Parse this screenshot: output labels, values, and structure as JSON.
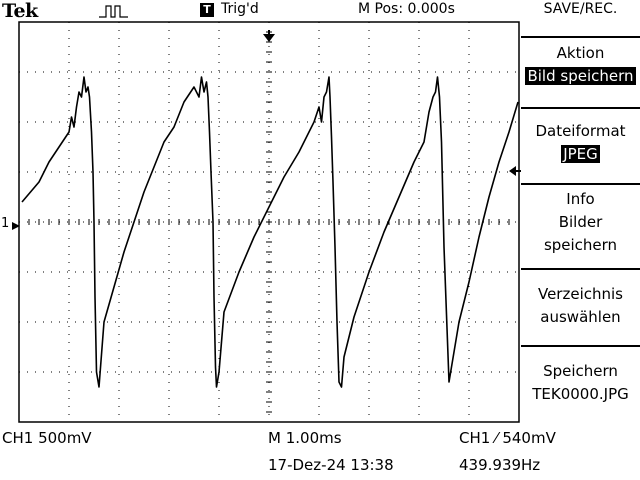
{
  "header": {
    "brand": "Tek",
    "trigger_badge": "T",
    "trigger_status": "Trig'd",
    "m_pos": "M Pos: 0.000s",
    "menu_title": "SAVE/REC."
  },
  "side_menu": {
    "aktion_label": "Aktion",
    "aktion_value": "Bild speichern",
    "format_label": "Dateiformat",
    "format_value": "JPEG",
    "info_line1": "Info",
    "info_line2": "Bilder",
    "info_line3": "speichern",
    "dir_line1": "Verzeichnis",
    "dir_line2": "auswählen",
    "save_line1": "Speichern",
    "save_line2": "TEK0000.JPG"
  },
  "channel_marker": "1",
  "footer": {
    "ch1_scale": "CH1  500mV",
    "timebase": "M 1.00ms",
    "trigger": "CH1 ⁄ 540mV",
    "datetime": "17-Dez-24 13:38",
    "frequency": "439.939Hz"
  },
  "chart_data": {
    "type": "line",
    "title": "",
    "xlabel": "",
    "ylabel": "",
    "x_divisions": 10,
    "y_divisions": 8,
    "xlim": [
      -5,
      5
    ],
    "ylim": [
      -4,
      4
    ],
    "grid": true,
    "series": [
      {
        "x": [
          -4.94,
          -4.6,
          -4.4,
          -4.2,
          -4.0,
          -3.95,
          -3.9,
          -3.85,
          -3.8,
          -3.75,
          -3.7,
          -3.66,
          -3.62,
          -3.59,
          -3.55,
          -3.52,
          -3.5,
          -3.48,
          -3.45,
          -3.4,
          -3.3,
          -3.1,
          -2.9,
          -2.7,
          -2.5,
          -2.3,
          -2.1,
          -1.9,
          -1.7,
          -1.5,
          -1.4,
          -1.35,
          -1.3,
          -1.25,
          -1.22,
          -1.19,
          -1.16,
          -1.12,
          -1.1,
          -1.07,
          -1.05,
          -1.0,
          -0.9,
          -0.6,
          -0.3,
          0.0,
          0.3,
          0.6,
          0.9,
          1.0,
          1.05,
          1.1,
          1.15,
          1.2,
          1.22,
          1.25,
          1.28,
          1.32,
          1.36,
          1.4,
          1.45,
          1.5,
          1.7,
          2.0,
          2.3,
          2.6,
          2.9,
          3.1,
          3.2,
          3.28,
          3.33,
          3.37,
          3.41,
          3.45,
          3.5,
          3.6,
          3.8,
          4.0,
          4.2,
          4.4,
          4.6,
          4.8,
          4.98
        ],
        "y": [
          0.4,
          0.8,
          1.2,
          1.5,
          1.8,
          2.1,
          1.9,
          2.3,
          2.6,
          2.5,
          2.9,
          2.6,
          2.7,
          2.5,
          1.8,
          1.0,
          0.0,
          -1.5,
          -3.0,
          -3.3,
          -2.0,
          -1.3,
          -0.6,
          0.0,
          0.6,
          1.1,
          1.6,
          1.9,
          2.4,
          2.7,
          2.5,
          2.9,
          2.6,
          2.8,
          2.5,
          1.8,
          1.0,
          0.0,
          -1.5,
          -2.9,
          -3.3,
          -3.0,
          -1.8,
          -1.0,
          -0.3,
          0.3,
          0.9,
          1.4,
          2.0,
          2.3,
          2.0,
          2.5,
          2.6,
          2.9,
          2.5,
          1.7,
          0.8,
          -0.5,
          -2.0,
          -3.2,
          -3.3,
          -2.7,
          -1.9,
          -1.0,
          -0.2,
          0.5,
          1.2,
          1.6,
          2.2,
          2.5,
          2.6,
          2.9,
          2.5,
          1.6,
          -0.5,
          -3.2,
          -2.0,
          -1.2,
          -0.3,
          0.5,
          1.2,
          1.8,
          2.4
        ]
      }
    ]
  }
}
